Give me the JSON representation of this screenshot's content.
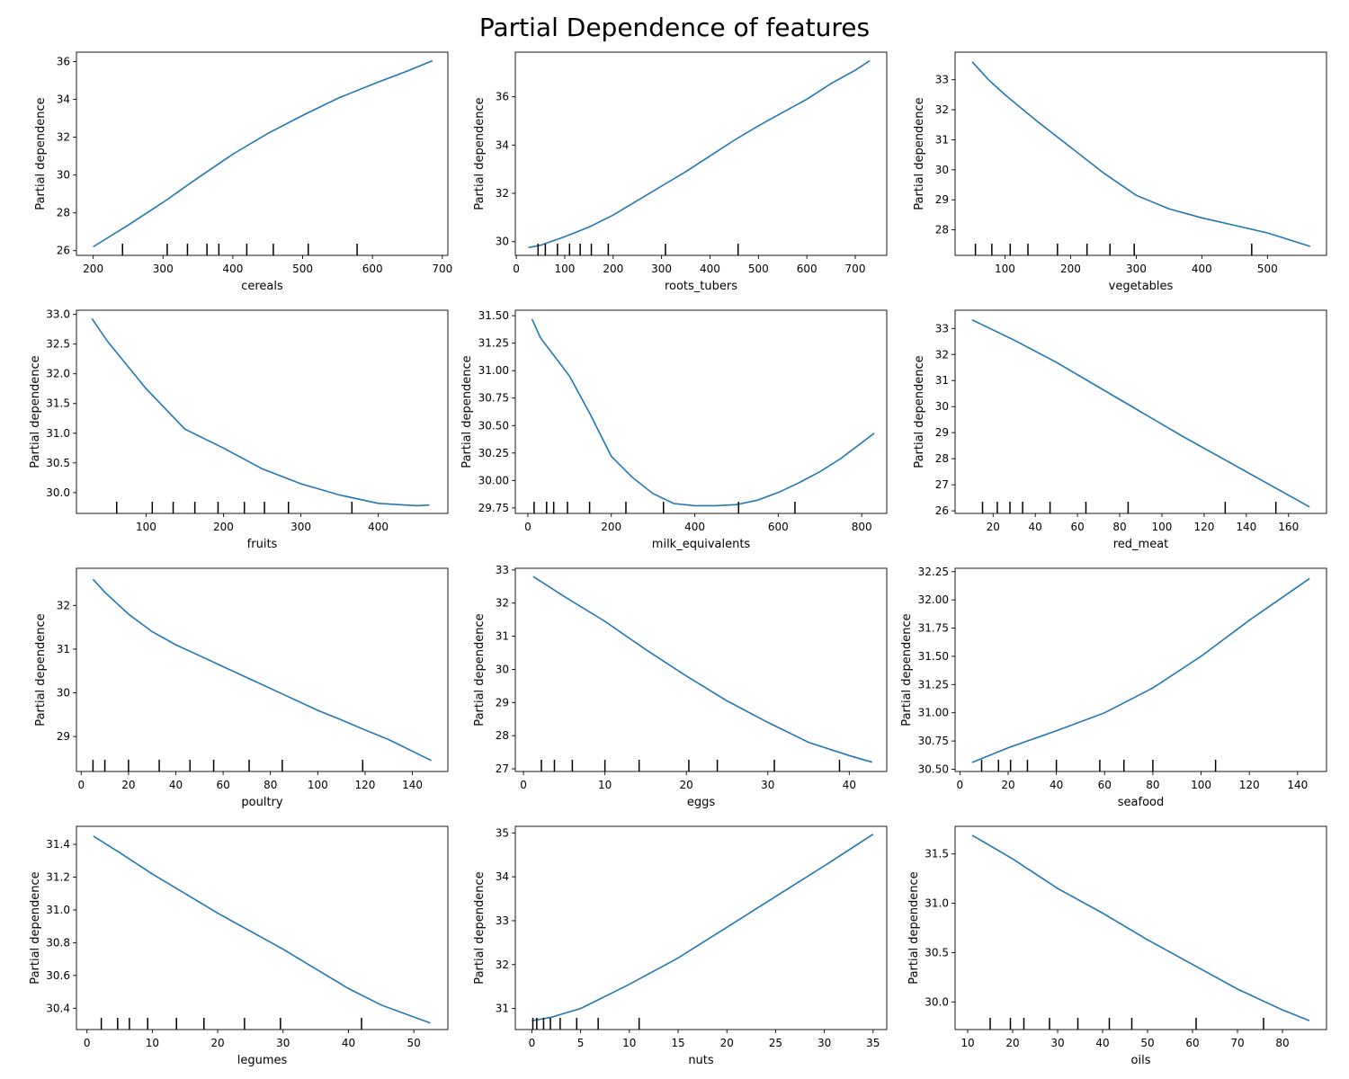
{
  "title": "Partial Dependence of features",
  "colors": {
    "line": "#1f77b4",
    "axis": "#000000"
  },
  "chart_data": [
    {
      "type": "line",
      "xlabel": "cereals",
      "ylabel": "Partial dependence",
      "xlim": [
        176,
        708
      ],
      "ylim": [
        25.75,
        36.5
      ],
      "xticks": [
        200,
        300,
        400,
        500,
        600,
        700
      ],
      "yticks": [
        26,
        28,
        30,
        32,
        34,
        36
      ],
      "x": [
        200,
        250,
        300,
        350,
        400,
        450,
        500,
        550,
        600,
        650,
        686
      ],
      "y": [
        26.2,
        27.35,
        28.55,
        29.85,
        31.1,
        32.2,
        33.15,
        34.05,
        34.8,
        35.5,
        36.05
      ],
      "rug": [
        242,
        306,
        335,
        363,
        380,
        420,
        458,
        508,
        578
      ]
    },
    {
      "type": "line",
      "xlabel": "roots_tubers",
      "ylabel": "Partial dependence",
      "xlim": [
        -2,
        765
      ],
      "ylim": [
        29.43,
        37.85
      ],
      "xticks": [
        0,
        100,
        200,
        300,
        400,
        500,
        600,
        700
      ],
      "yticks": [
        30,
        32,
        34,
        36
      ],
      "x": [
        25,
        50,
        100,
        150,
        200,
        250,
        300,
        350,
        400,
        450,
        500,
        550,
        600,
        650,
        700,
        730
      ],
      "y": [
        29.75,
        29.85,
        30.2,
        30.6,
        31.1,
        31.7,
        32.3,
        32.9,
        33.55,
        34.2,
        34.8,
        35.35,
        35.9,
        36.55,
        37.1,
        37.5
      ],
      "rug": [
        45,
        60,
        85,
        110,
        132,
        155,
        190,
        308,
        458
      ]
    },
    {
      "type": "line",
      "xlabel": "vegetables",
      "ylabel": "Partial dependence",
      "xlim": [
        24,
        590
      ],
      "ylim": [
        27.15,
        33.92
      ],
      "xticks": [
        100,
        200,
        300,
        400,
        500
      ],
      "yticks": [
        28,
        29,
        30,
        31,
        32,
        33
      ],
      "x": [
        50,
        75,
        100,
        150,
        200,
        250,
        300,
        350,
        400,
        450,
        500,
        565
      ],
      "y": [
        33.6,
        33.0,
        32.5,
        31.6,
        30.75,
        29.9,
        29.15,
        28.7,
        28.4,
        28.15,
        27.9,
        27.45
      ],
      "rug": [
        55,
        80,
        108,
        135,
        180,
        225,
        260,
        297,
        476
      ]
    },
    {
      "type": "line",
      "xlabel": "fruits",
      "ylabel": "Partial dependence",
      "xlim": [
        10,
        490
      ],
      "ylim": [
        29.65,
        33.07
      ],
      "xticks": [
        100,
        200,
        300,
        400
      ],
      "yticks": [
        30.0,
        30.5,
        31.0,
        31.5,
        32.0,
        32.5,
        33.0
      ],
      "x": [
        30,
        50,
        100,
        150,
        200,
        250,
        300,
        350,
        400,
        450,
        466
      ],
      "y": [
        32.93,
        32.55,
        31.75,
        31.07,
        30.75,
        30.4,
        30.15,
        29.96,
        29.82,
        29.78,
        29.79
      ],
      "rug": [
        62,
        108,
        135,
        163,
        193,
        227,
        253,
        284,
        366
      ]
    },
    {
      "type": "line",
      "xlabel": "milk_equivalents",
      "ylabel": "Partial dependence",
      "xlim": [
        -30,
        860
      ],
      "ylim": [
        29.7,
        31.55
      ],
      "xticks": [
        0,
        200,
        400,
        600,
        800
      ],
      "yticks": [
        29.75,
        30.0,
        30.25,
        30.5,
        30.75,
        31.0,
        31.25,
        31.5
      ],
      "x": [
        10,
        30,
        60,
        100,
        150,
        200,
        250,
        300,
        350,
        400,
        450,
        500,
        550,
        600,
        650,
        700,
        750,
        830
      ],
      "y": [
        31.47,
        31.3,
        31.15,
        30.95,
        30.6,
        30.22,
        30.03,
        29.88,
        29.79,
        29.77,
        29.77,
        29.78,
        29.82,
        29.89,
        29.98,
        30.08,
        30.2,
        30.43
      ],
      "rug": [
        15,
        45,
        62,
        95,
        148,
        235,
        325,
        505,
        640
      ]
    },
    {
      "type": "line",
      "xlabel": "red_meat",
      "ylabel": "Partial dependence",
      "xlim": [
        2,
        178
      ],
      "ylim": [
        25.9,
        33.7
      ],
      "xticks": [
        20,
        40,
        60,
        80,
        100,
        120,
        140,
        160
      ],
      "yticks": [
        26,
        27,
        28,
        29,
        30,
        31,
        32,
        33
      ],
      "x": [
        10,
        30,
        50,
        70,
        90,
        110,
        130,
        150,
        170
      ],
      "y": [
        33.33,
        32.55,
        31.7,
        30.75,
        29.8,
        28.85,
        27.95,
        27.05,
        26.15
      ],
      "rug": [
        15,
        22,
        28,
        34,
        47,
        64,
        84,
        130,
        154
      ]
    },
    {
      "type": "line",
      "xlabel": "poultry",
      "ylabel": "Partial dependence",
      "xlim": [
        -2,
        155
      ],
      "ylim": [
        28.2,
        32.85
      ],
      "xticks": [
        0,
        20,
        40,
        60,
        80,
        100,
        120,
        140
      ],
      "yticks": [
        29,
        30,
        31,
        32
      ],
      "x": [
        5,
        10,
        20,
        30,
        40,
        50,
        60,
        70,
        80,
        90,
        100,
        110,
        120,
        130,
        148
      ],
      "y": [
        32.6,
        32.3,
        31.8,
        31.4,
        31.1,
        30.85,
        30.6,
        30.35,
        30.1,
        29.85,
        29.6,
        29.38,
        29.15,
        28.93,
        28.45
      ],
      "rug": [
        5,
        10,
        20,
        33,
        46,
        56,
        71,
        85,
        119
      ]
    },
    {
      "type": "line",
      "xlabel": "eggs",
      "ylabel": "Partial dependence",
      "xlim": [
        -1,
        44.6
      ],
      "ylim": [
        26.92,
        33.05
      ],
      "xticks": [
        0,
        10,
        20,
        30,
        40
      ],
      "yticks": [
        27,
        28,
        29,
        30,
        31,
        32,
        33
      ],
      "x": [
        1.2,
        5,
        10,
        15,
        20,
        25,
        30,
        35,
        40,
        42.8
      ],
      "y": [
        32.8,
        32.2,
        31.45,
        30.6,
        29.8,
        29.05,
        28.4,
        27.8,
        27.4,
        27.2
      ],
      "rug": [
        2.2,
        3.8,
        6,
        10,
        14.2,
        20.3,
        23.8,
        30.8,
        38.8
      ]
    },
    {
      "type": "line",
      "xlabel": "seafood",
      "ylabel": "Partial dependence",
      "xlim": [
        -2,
        152
      ],
      "ylim": [
        30.48,
        32.28
      ],
      "xticks": [
        0,
        20,
        40,
        60,
        80,
        100,
        120,
        140
      ],
      "yticks": [
        30.5,
        30.75,
        31.0,
        31.25,
        31.5,
        31.75,
        32.0,
        32.25
      ],
      "x": [
        5,
        20,
        40,
        60,
        80,
        100,
        120,
        145
      ],
      "y": [
        30.56,
        30.69,
        30.84,
        31.0,
        31.22,
        31.5,
        31.82,
        32.19
      ],
      "rug": [
        9,
        16,
        21,
        28,
        40,
        58,
        68,
        80,
        106
      ]
    },
    {
      "type": "line",
      "xlabel": "legumes",
      "ylabel": "Partial dependence",
      "xlim": [
        -1.6,
        55.2
      ],
      "ylim": [
        30.27,
        31.51
      ],
      "xticks": [
        0,
        10,
        20,
        30,
        40,
        50
      ],
      "yticks": [
        30.4,
        30.6,
        30.8,
        31.0,
        31.2,
        31.4
      ],
      "x": [
        1,
        5,
        10,
        15,
        20,
        25,
        30,
        35,
        40,
        45,
        52.5
      ],
      "y": [
        31.45,
        31.35,
        31.22,
        31.1,
        30.98,
        30.87,
        30.76,
        30.64,
        30.52,
        30.42,
        30.31
      ],
      "rug": [
        2.2,
        4.7,
        6.5,
        9.3,
        13.7,
        17.9,
        24.1,
        29.6,
        42
      ]
    },
    {
      "type": "line",
      "xlabel": "nuts",
      "ylabel": "Partial dependence",
      "xlim": [
        -1.7,
        36.4
      ],
      "ylim": [
        30.52,
        35.15
      ],
      "xticks": [
        0,
        5,
        10,
        15,
        20,
        25,
        30,
        35
      ],
      "yticks": [
        31,
        32,
        33,
        34,
        35
      ],
      "x": [
        0,
        2,
        5,
        10,
        15,
        20,
        25,
        30,
        35
      ],
      "y": [
        30.72,
        30.8,
        31.0,
        31.55,
        32.15,
        32.85,
        33.55,
        34.25,
        34.97
      ],
      "rug": [
        0.1,
        0.5,
        1.2,
        1.9,
        2.9,
        4.6,
        6.8,
        11
      ]
    },
    {
      "type": "line",
      "xlabel": "oils",
      "ylabel": "Partial dependence",
      "xlim": [
        7.2,
        89.8
      ],
      "ylim": [
        29.72,
        31.78
      ],
      "xticks": [
        10,
        20,
        30,
        40,
        50,
        60,
        70,
        80
      ],
      "yticks": [
        30.0,
        30.5,
        31.0,
        31.5
      ],
      "x": [
        11,
        20,
        30,
        40,
        50,
        60,
        70,
        80,
        86
      ],
      "y": [
        31.69,
        31.45,
        31.15,
        30.9,
        30.63,
        30.38,
        30.13,
        29.92,
        29.81
      ],
      "rug": [
        15,
        19.5,
        22.5,
        28.2,
        34.5,
        41.5,
        46.5,
        60.8,
        75.8
      ]
    }
  ]
}
